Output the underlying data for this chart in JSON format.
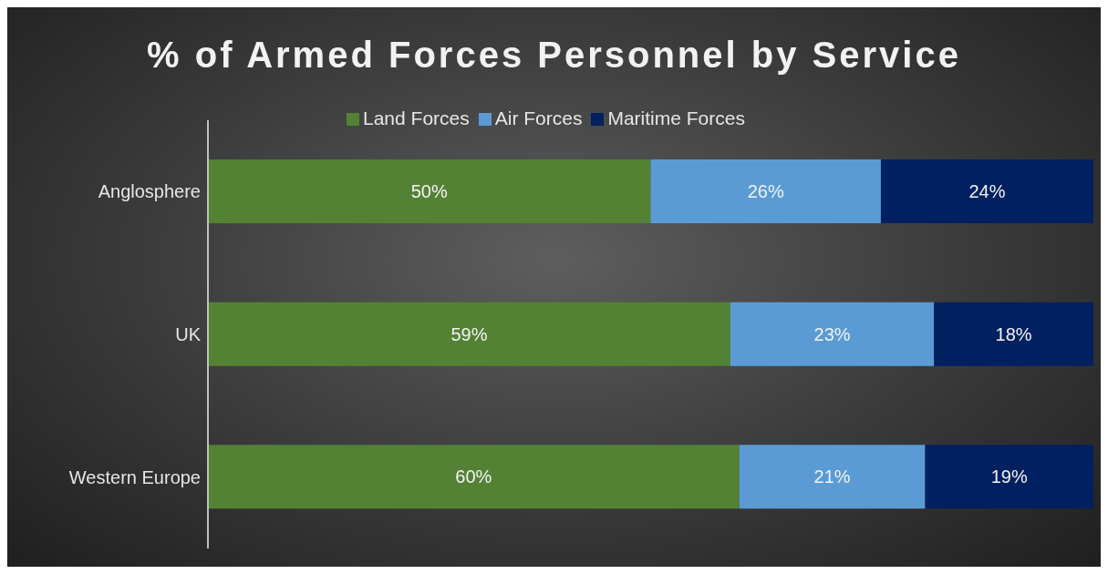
{
  "chart_data": {
    "type": "bar",
    "title": "% of Armed Forces Personnel by Service",
    "orientation": "horizontal",
    "stacked": true,
    "categories": [
      "Anglosphere",
      "UK",
      "Western Europe"
    ],
    "series": [
      {
        "name": "Land Forces",
        "color": "#548235",
        "values": [
          50,
          59,
          60
        ],
        "value_labels": [
          "50%",
          "59%",
          "60%"
        ]
      },
      {
        "name": "Air Forces",
        "color": "#5b9bd5",
        "values": [
          26,
          23,
          21
        ],
        "value_labels": [
          "26%",
          "23%",
          "21%"
        ]
      },
      {
        "name": "Maritime Forces",
        "color": "#002060",
        "values": [
          24,
          18,
          19
        ],
        "value_labels": [
          "24%",
          "18%",
          "19%"
        ]
      }
    ],
    "xlim": [
      0,
      100
    ],
    "tick_labels": "y",
    "legend": "top"
  }
}
